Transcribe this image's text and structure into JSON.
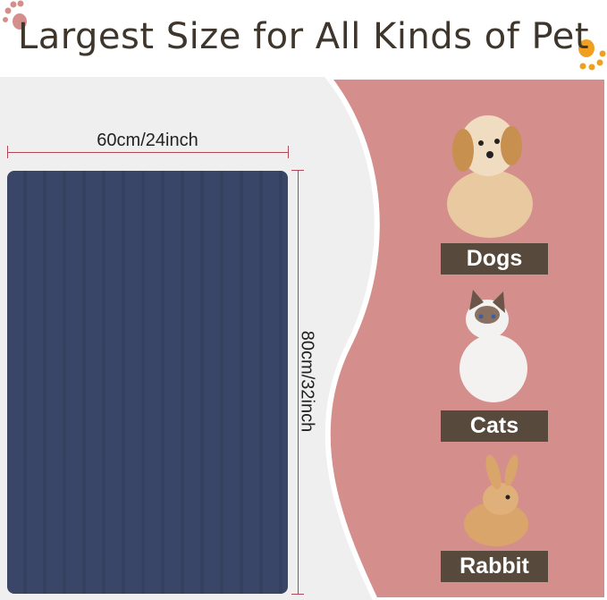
{
  "title": "Largest Size for All Kinds of Pet",
  "dimensions": {
    "width": "60cm/24inch",
    "height": "80cm/32inch"
  },
  "pets": [
    {
      "label": "Dogs",
      "icon": "dog-photo"
    },
    {
      "label": "Cats",
      "icon": "cat-photo"
    },
    {
      "label": "Rabbit",
      "icon": "rabbit-photo"
    }
  ],
  "colors": {
    "title": "#3e362c",
    "pink": "#d48f8c",
    "mat": "#3a4668",
    "label_bg": "#574a3c",
    "paw_pink": "#d48f8c",
    "paw_orange": "#f0a020"
  }
}
